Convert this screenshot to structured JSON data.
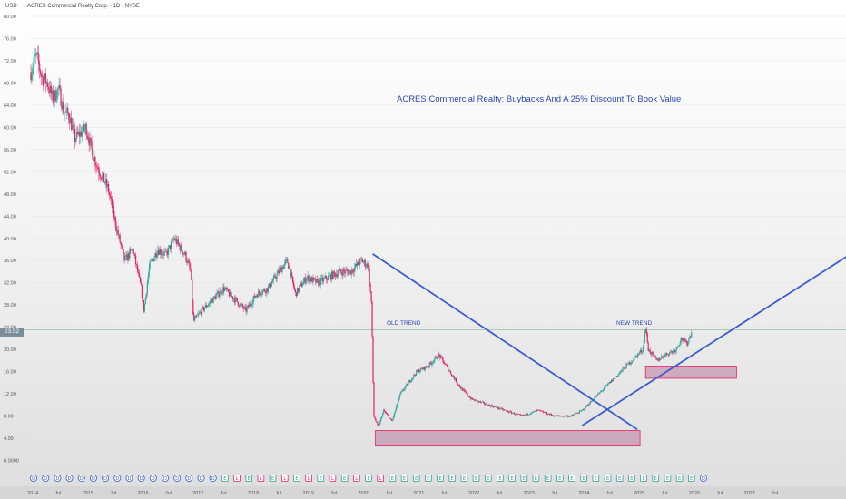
{
  "header": {
    "currency": "USD",
    "symbol_title": "ACRES Commercial Realty Corp. · 1D · NYSE"
  },
  "annotations": {
    "title": "ACRES Commercial Realty: Buybacks And A 25% Discount To Book Value",
    "old_trend": "OLD TREND",
    "new_trend": "NEW TREND"
  },
  "colors": {
    "up": "#26a69a",
    "down": "#e91e63",
    "trendline": "#3a5ccc",
    "zone_fill": "#b87a9e",
    "zone_stroke": "#e91e63",
    "price_line": "#8fbf9f",
    "price_tag": "#7a8d9a"
  },
  "chart_data": {
    "type": "candlestick",
    "title": "ACRES Commercial Realty: Buybacks And A 25% Discount To Book Value",
    "currency": "USD",
    "last_price": 23.52,
    "last_price_label": "23.52",
    "ylim": [
      -4,
      80
    ],
    "y_ticks": [
      80,
      76,
      72,
      68,
      64,
      60,
      56,
      52,
      48,
      44,
      40,
      36,
      32,
      28,
      24,
      20,
      16,
      12,
      8,
      4,
      0
    ],
    "y_tick_labels": [
      "80.00",
      "76.00",
      "72.00",
      "68.00",
      "64.00",
      "60.00",
      "56.00",
      "52.00",
      "48.00",
      "44.00",
      "40.00",
      "36.00",
      "32.00",
      "28.00",
      "24.00",
      "20.00",
      "16.00",
      "12.00",
      "8.00",
      "4.00",
      "0.0000"
    ],
    "x_range": [
      2014.0,
      2029.0
    ],
    "x_ticks": [
      {
        "t": 2014.0,
        "label": "2014"
      },
      {
        "t": 2014.5,
        "label": "Jul"
      },
      {
        "t": 2015.0,
        "label": "2015"
      },
      {
        "t": 2015.5,
        "label": "Jul"
      },
      {
        "t": 2016.0,
        "label": "2016"
      },
      {
        "t": 2016.5,
        "label": "Jul"
      },
      {
        "t": 2017.0,
        "label": "2017"
      },
      {
        "t": 2017.5,
        "label": "Jul"
      },
      {
        "t": 2018.0,
        "label": "2018"
      },
      {
        "t": 2018.5,
        "label": "Jul"
      },
      {
        "t": 2019.0,
        "label": "2019"
      },
      {
        "t": 2019.5,
        "label": "Jul"
      },
      {
        "t": 2020.0,
        "label": "2020"
      },
      {
        "t": 2020.5,
        "label": "Jul"
      },
      {
        "t": 2021.0,
        "label": "2021"
      },
      {
        "t": 2021.5,
        "label": "Jul"
      },
      {
        "t": 2022.0,
        "label": "2022"
      },
      {
        "t": 2022.5,
        "label": "Jul"
      },
      {
        "t": 2023.0,
        "label": "2023"
      },
      {
        "t": 2023.5,
        "label": "Jul"
      },
      {
        "t": 2024.0,
        "label": "2024"
      },
      {
        "t": 2024.5,
        "label": "Jul"
      },
      {
        "t": 2025.0,
        "label": "2025"
      },
      {
        "t": 2025.5,
        "label": "Jul"
      },
      {
        "t": 2026.0,
        "label": "2026"
      },
      {
        "t": 2026.5,
        "label": "Jul"
      },
      {
        "t": 2027.0,
        "label": "2027"
      },
      {
        "t": 2027.5,
        "label": "Jul"
      }
    ],
    "price_path": [
      [
        2014.0,
        70
      ],
      [
        2014.1,
        73
      ],
      [
        2014.2,
        69
      ],
      [
        2014.3,
        68
      ],
      [
        2014.4,
        65
      ],
      [
        2014.5,
        67
      ],
      [
        2014.6,
        63
      ],
      [
        2014.7,
        62
      ],
      [
        2014.8,
        58
      ],
      [
        2015.0,
        60
      ],
      [
        2015.1,
        56
      ],
      [
        2015.2,
        53
      ],
      [
        2015.4,
        49
      ],
      [
        2015.55,
        42
      ],
      [
        2015.7,
        36
      ],
      [
        2015.85,
        38
      ],
      [
        2016.0,
        31
      ],
      [
        2016.05,
        27
      ],
      [
        2016.15,
        35
      ],
      [
        2016.3,
        38
      ],
      [
        2016.45,
        37
      ],
      [
        2016.6,
        40
      ],
      [
        2016.8,
        37
      ],
      [
        2016.9,
        34
      ],
      [
        2016.95,
        25
      ],
      [
        2017.1,
        27
      ],
      [
        2017.3,
        29
      ],
      [
        2017.5,
        31
      ],
      [
        2017.7,
        29
      ],
      [
        2017.9,
        27
      ],
      [
        2018.1,
        30
      ],
      [
        2018.3,
        31
      ],
      [
        2018.5,
        34
      ],
      [
        2018.65,
        36
      ],
      [
        2018.8,
        30
      ],
      [
        2019.0,
        33
      ],
      [
        2019.2,
        32
      ],
      [
        2019.4,
        33
      ],
      [
        2019.6,
        34
      ],
      [
        2019.8,
        34
      ],
      [
        2020.0,
        36
      ],
      [
        2020.12,
        35
      ],
      [
        2020.18,
        28
      ],
      [
        2020.22,
        8
      ],
      [
        2020.3,
        6
      ],
      [
        2020.4,
        9
      ],
      [
        2020.55,
        7
      ],
      [
        2020.7,
        12
      ],
      [
        2020.85,
        14
      ],
      [
        2021.0,
        16
      ],
      [
        2021.2,
        17
      ],
      [
        2021.4,
        19
      ],
      [
        2021.6,
        16
      ],
      [
        2021.8,
        13
      ],
      [
        2022.0,
        11
      ],
      [
        2022.3,
        10
      ],
      [
        2022.6,
        9
      ],
      [
        2022.9,
        8
      ],
      [
        2023.2,
        9
      ],
      [
        2023.5,
        8
      ],
      [
        2023.8,
        8
      ],
      [
        2024.0,
        9
      ],
      [
        2024.2,
        11
      ],
      [
        2024.4,
        13
      ],
      [
        2024.6,
        15
      ],
      [
        2024.8,
        17
      ],
      [
        2025.0,
        19
      ],
      [
        2025.1,
        20
      ],
      [
        2025.15,
        24
      ],
      [
        2025.2,
        20
      ],
      [
        2025.35,
        18
      ],
      [
        2025.5,
        19
      ],
      [
        2025.7,
        20
      ],
      [
        2025.8,
        22
      ],
      [
        2025.9,
        21
      ],
      [
        2026.0,
        23.52
      ]
    ],
    "trendlines": [
      {
        "name": "OLD TREND",
        "from": [
          2020.2,
          37.2
        ],
        "to": [
          2025.0,
          5.6
        ]
      },
      {
        "name": "NEW TREND",
        "from": [
          2024.0,
          6.3
        ],
        "to": [
          2029.0,
          38.0
        ]
      }
    ],
    "zones": [
      {
        "x": [
          2020.25,
          2025.05
        ],
        "y": [
          2.6,
          5.4
        ]
      },
      {
        "x": [
          2025.15,
          2026.8
        ],
        "y": [
          14.8,
          17.0
        ]
      }
    ],
    "event_row": {
      "labels": [
        "D",
        "D",
        "D",
        "D",
        "D",
        "D",
        "D",
        "D",
        "D",
        "D",
        "D",
        "D",
        "D",
        "D",
        "D",
        "D",
        "E",
        "L",
        "E",
        "L",
        "E",
        "L",
        "E",
        "L",
        "E",
        "L",
        "E",
        "L",
        "E",
        "L",
        "E",
        "E",
        "E",
        "E",
        "E",
        "E",
        "E",
        "E",
        "E",
        "E",
        "E",
        "E",
        "E",
        "E",
        "E",
        "E",
        "E",
        "E",
        "E",
        "E",
        "E",
        "E",
        "E",
        "E",
        "E",
        "E",
        "D"
      ],
      "t_start": 2014.05,
      "t_end": 2026.2
    }
  }
}
